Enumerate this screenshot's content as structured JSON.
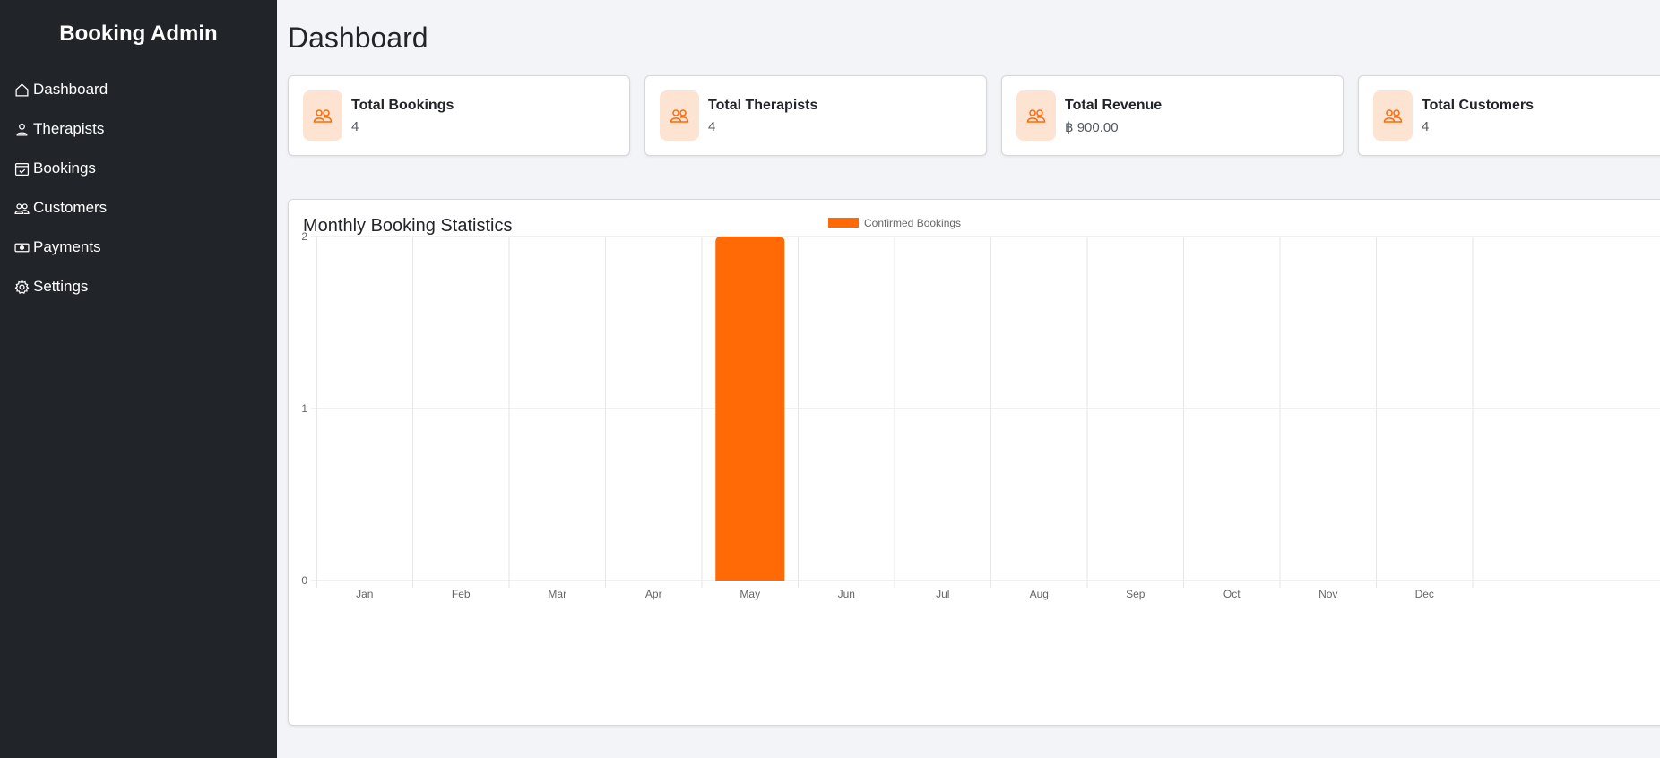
{
  "sidebar": {
    "brand": "Booking Admin",
    "items": [
      {
        "label": "Dashboard",
        "icon": "home-icon"
      },
      {
        "label": "Therapists",
        "icon": "person-icon"
      },
      {
        "label": "Bookings",
        "icon": "calendar-check-icon"
      },
      {
        "label": "Customers",
        "icon": "people-icon"
      },
      {
        "label": "Payments",
        "icon": "cash-icon"
      },
      {
        "label": "Settings",
        "icon": "gear-icon"
      }
    ]
  },
  "main": {
    "title": "Dashboard",
    "cards": [
      {
        "label": "Total Bookings",
        "value": "4",
        "icon": "people-icon"
      },
      {
        "label": "Total Therapists",
        "value": "4",
        "icon": "people-icon"
      },
      {
        "label": "Total Revenue",
        "value": "฿ 900.00",
        "icon": "people-icon"
      },
      {
        "label": "Total Customers",
        "value": "4",
        "icon": "people-icon"
      }
    ],
    "chart_title": "Monthly Booking Statistics"
  },
  "colors": {
    "sidebar_bg": "#212529",
    "accent": "#ff6a06",
    "icon_bg": "#fde3d2"
  },
  "chart_data": {
    "type": "bar",
    "categories": [
      "Jan",
      "Feb",
      "Mar",
      "Apr",
      "May",
      "Jun",
      "Jul",
      "Aug",
      "Sep",
      "Oct",
      "Nov",
      "Dec"
    ],
    "series": [
      {
        "name": "Confirmed Bookings",
        "values": [
          0,
          0,
          0,
          0,
          2,
          0,
          0,
          0,
          0,
          0,
          0,
          0
        ],
        "color": "#ff6a06"
      }
    ],
    "ylim": [
      0,
      2
    ],
    "yticks": [
      0,
      1,
      2
    ],
    "grid": true,
    "legend": "top-center"
  }
}
